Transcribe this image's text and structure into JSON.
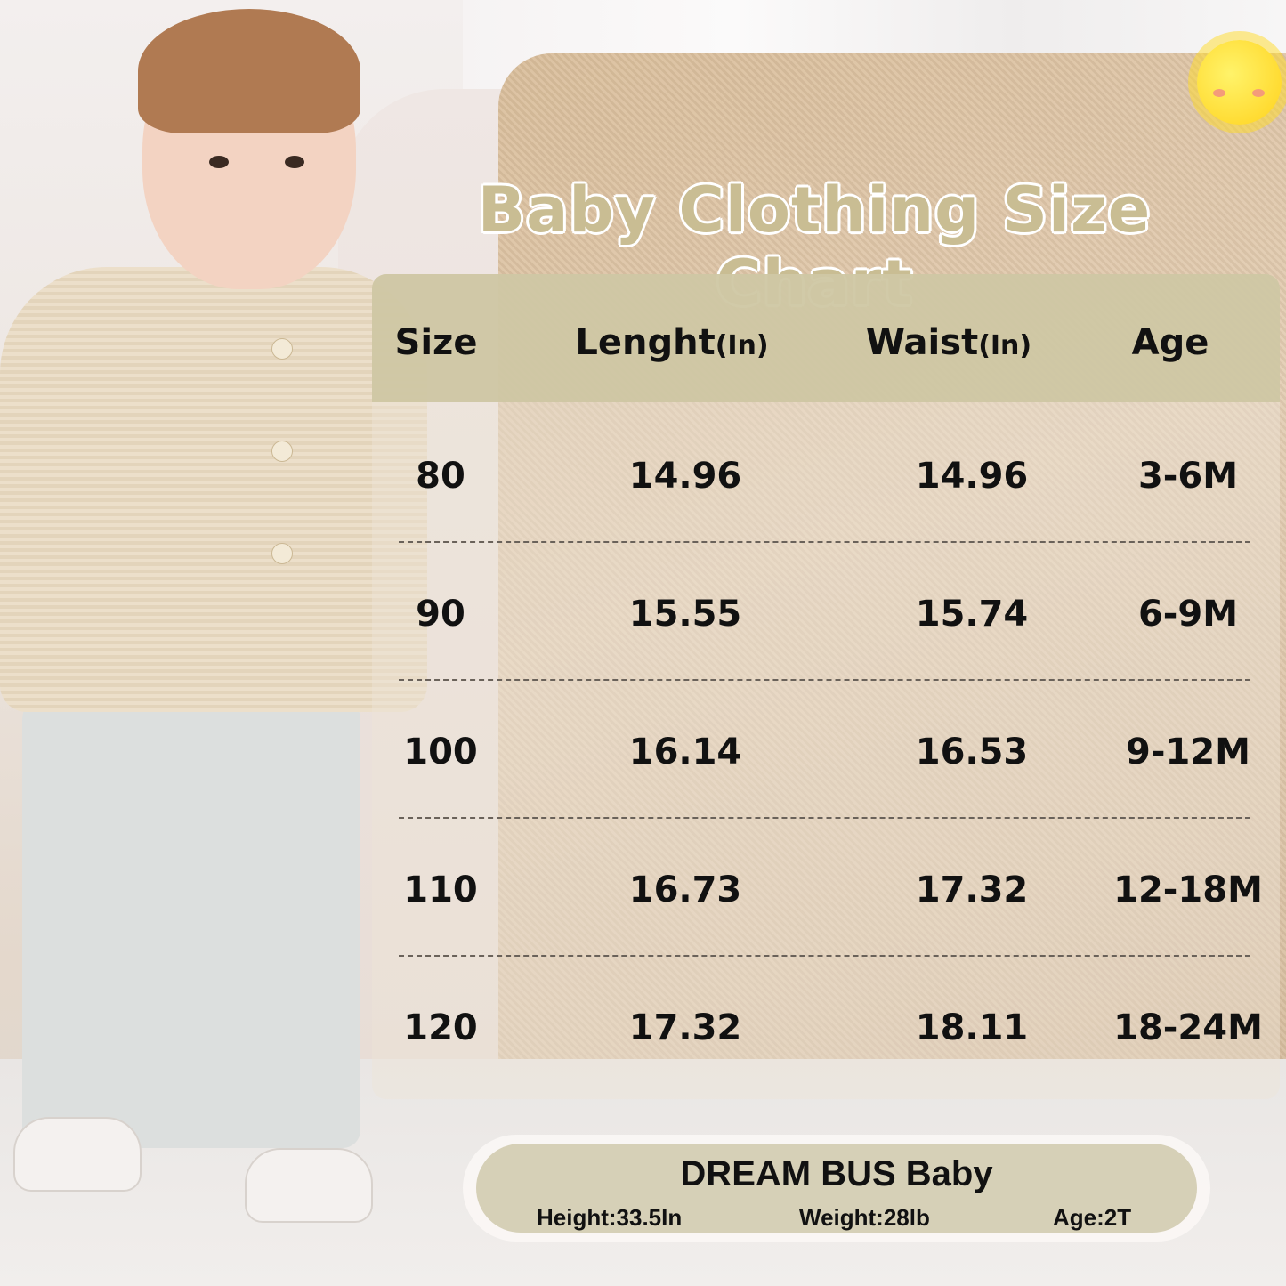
{
  "title": "Baby Clothing Size Chart",
  "colors": {
    "title": "#c9bd93",
    "header_band": "#cdc6a2",
    "footer_band": "#d6d0b7",
    "text": "#111111"
  },
  "icons": [
    "sun-icon"
  ],
  "table": {
    "headers": [
      {
        "label": "Size",
        "unit": ""
      },
      {
        "label": "Lenght",
        "unit": "(In)"
      },
      {
        "label": "Waist",
        "unit": "(In)"
      },
      {
        "label": "Age",
        "unit": ""
      }
    ],
    "rows": [
      [
        "80",
        "14.96",
        "14.96",
        "3-6M"
      ],
      [
        "90",
        "15.55",
        "15.74",
        "6-9M"
      ],
      [
        "100",
        "16.14",
        "16.53",
        "9-12M"
      ],
      [
        "110",
        "16.73",
        "17.32",
        "12-18M"
      ],
      [
        "120",
        "17.32",
        "18.11",
        "18-24M"
      ]
    ]
  },
  "model": {
    "brand": "DREAM BUS Baby",
    "height": "Height:33.5In",
    "weight": "Weight:28lb",
    "age": "Age:2T"
  }
}
